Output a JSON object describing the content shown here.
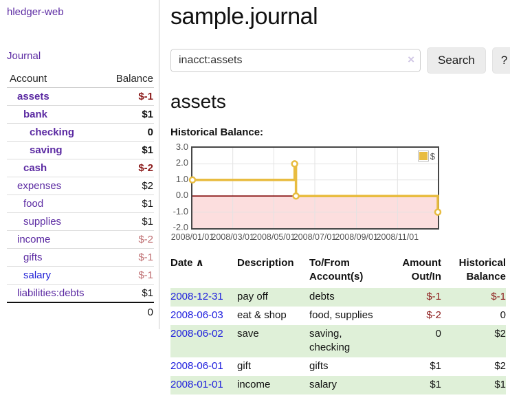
{
  "app": {
    "brand": "hledger-web"
  },
  "colors": {
    "accent_purple": "#5b2aa2",
    "link_blue": "#2121d6",
    "negative_strong": "#8b1a1a",
    "negative_soft": "#bf6f72",
    "row_green": "#dff0d8",
    "series_gold": "#e8bc40",
    "chart_negative_bg": "#fcdede",
    "zero_line": "#7d0000"
  },
  "sidebar": {
    "nav_journal": "Journal",
    "accounts": {
      "header_account": "Account",
      "header_balance": "Balance",
      "rows": [
        {
          "account": "assets",
          "balance": "$-1",
          "depth": 1,
          "bold": true,
          "balance_class": "neg-strong",
          "blue": false
        },
        {
          "account": "bank",
          "balance": "$1",
          "depth": 2,
          "bold": true,
          "balance_class": "",
          "blue": false
        },
        {
          "account": "checking",
          "balance": "0",
          "depth": 3,
          "bold": true,
          "balance_class": "",
          "blue": false
        },
        {
          "account": "saving",
          "balance": "$1",
          "depth": 3,
          "bold": true,
          "balance_class": "",
          "blue": false
        },
        {
          "account": "cash",
          "balance": "$-2",
          "depth": 2,
          "bold": true,
          "balance_class": "neg-strong",
          "blue": false
        },
        {
          "account": "expenses",
          "balance": "$2",
          "depth": 1,
          "bold": false,
          "balance_class": "",
          "blue": false
        },
        {
          "account": "food",
          "balance": "$1",
          "depth": 2,
          "bold": false,
          "balance_class": "",
          "blue": false
        },
        {
          "account": "supplies",
          "balance": "$1",
          "depth": 2,
          "bold": false,
          "balance_class": "",
          "blue": false
        },
        {
          "account": "income",
          "balance": "$-2",
          "depth": 1,
          "bold": false,
          "balance_class": "neg-soft",
          "blue": false
        },
        {
          "account": "gifts",
          "balance": "$-1",
          "depth": 2,
          "bold": false,
          "balance_class": "neg-soft",
          "blue": false
        },
        {
          "account": "salary",
          "balance": "$-1",
          "depth": 2,
          "bold": false,
          "balance_class": "neg-soft",
          "blue": true
        },
        {
          "account": "liabilities:debts",
          "balance": "$1",
          "depth": 1,
          "bold": false,
          "balance_class": "",
          "blue": false
        }
      ],
      "total": "0"
    }
  },
  "header": {
    "title": "sample.journal"
  },
  "search": {
    "value": "inacct:assets",
    "clear_icon": "×",
    "button_label": "Search",
    "help_label": "?"
  },
  "account_page": {
    "title": "assets",
    "chart_label": "Historical Balance:"
  },
  "chart_data": {
    "type": "line",
    "step": true,
    "title": "Historical Balance",
    "x_start": "2008-01-01",
    "xlim_days": [
      0,
      365
    ],
    "ylim": [
      -2,
      3
    ],
    "y_ticks": [
      "3.0",
      "2.0",
      "1.0",
      "0.0",
      "-1.0",
      "-2.0"
    ],
    "x_ticks": [
      "2008/01/01",
      "2008/03/01",
      "2008/05/01",
      "2008/07/01",
      "2008/09/01",
      "2008/11/01"
    ],
    "x_tick_days": [
      0,
      60,
      121,
      182,
      244,
      305
    ],
    "grid": true,
    "grid_color": "#e3e3e3",
    "zero_line_color": "#7d0000",
    "negative_region_color": "#fcdede",
    "legend": {
      "label": "$",
      "swatch_color": "#e8bc40",
      "position": "top-right"
    },
    "series": [
      {
        "name": "$",
        "color": "#e8bc40",
        "points": [
          [
            "2008-01-01",
            1
          ],
          [
            "2008-06-01",
            2
          ],
          [
            "2008-06-03",
            0
          ],
          [
            "2008-12-31",
            -1
          ]
        ]
      }
    ]
  },
  "register": {
    "headers": [
      {
        "key": "date",
        "label": "Date",
        "sort_icon": "∧",
        "align": "left"
      },
      {
        "key": "description",
        "label": "Description",
        "sort_icon": "",
        "align": "left"
      },
      {
        "key": "accounts",
        "label": "To/From\nAccount(s)",
        "sort_icon": "",
        "align": "left"
      },
      {
        "key": "amount",
        "label": "Amount\nOut/In",
        "sort_icon": "",
        "align": "right"
      },
      {
        "key": "balance",
        "label": "Historical\nBalance",
        "sort_icon": "",
        "align": "right"
      }
    ],
    "rows": [
      {
        "date": "2008-12-31",
        "description": "pay off",
        "accounts": "debts",
        "amount": "$-1",
        "balance": "$-1",
        "amount_negative": true,
        "balance_negative": true,
        "shaded": true
      },
      {
        "date": "2008-06-03",
        "description": "eat & shop",
        "accounts": "food, supplies",
        "amount": "$-2",
        "balance": "0",
        "amount_negative": true,
        "balance_negative": false,
        "shaded": false
      },
      {
        "date": "2008-06-02",
        "description": "save",
        "accounts": "saving, checking",
        "amount": "0",
        "balance": "$2",
        "amount_negative": false,
        "balance_negative": false,
        "shaded": true
      },
      {
        "date": "2008-06-01",
        "description": "gift",
        "accounts": "gifts",
        "amount": "$1",
        "balance": "$2",
        "amount_negative": false,
        "balance_negative": false,
        "shaded": false
      },
      {
        "date": "2008-01-01",
        "description": "income",
        "accounts": "salary",
        "amount": "$1",
        "balance": "$1",
        "amount_negative": false,
        "balance_negative": false,
        "shaded": true
      }
    ]
  }
}
